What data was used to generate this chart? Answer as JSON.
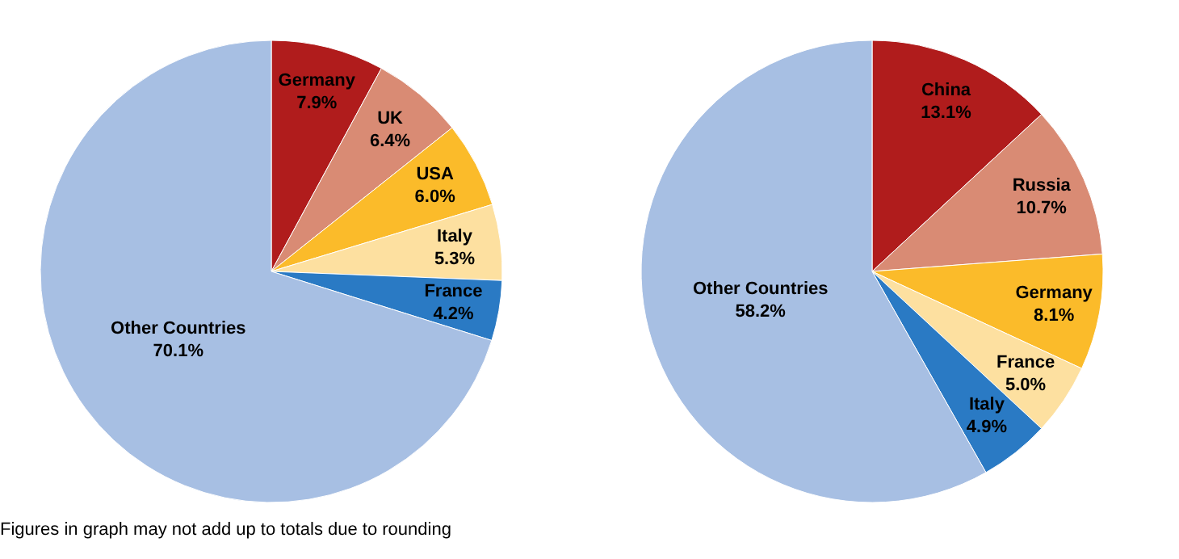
{
  "chart_data": [
    {
      "type": "pie",
      "categories": [
        "Germany",
        "UK",
        "USA",
        "Italy",
        "France",
        "Other Countries"
      ],
      "values": [
        7.9,
        6.4,
        6.0,
        5.3,
        4.2,
        70.1
      ],
      "value_labels": [
        "7.9%",
        "6.4%",
        "6.0%",
        "5.3%",
        "4.2%",
        "70.1%"
      ],
      "colors": [
        "#b01c1c",
        "#d98b74",
        "#fbbb2a",
        "#fde0a0",
        "#2a7ac4",
        "#a7bfe3"
      ],
      "annotations": [
        "Figures in graph may not add up to totals due to rounding"
      ]
    },
    {
      "type": "pie",
      "categories": [
        "China",
        "Russia",
        "Germany",
        "France",
        "Italy",
        "Other Countries"
      ],
      "values": [
        13.1,
        10.7,
        8.1,
        5.0,
        4.9,
        58.2
      ],
      "value_labels": [
        "13.1%",
        "10.7%",
        "8.1%",
        "5.0%",
        "4.9%",
        "58.2%"
      ],
      "colors": [
        "#b01c1c",
        "#d98b74",
        "#fbbb2a",
        "#fde0a0",
        "#2a7ac4",
        "#a7bfe3"
      ]
    }
  ]
}
